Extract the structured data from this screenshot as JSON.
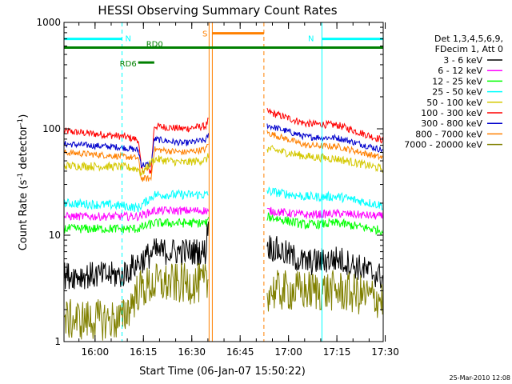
{
  "chart_data": {
    "type": "line",
    "title": "HESSI Observing Summary Count Rates",
    "xlabel": "Start Time (06-Jan-07 15:50:22)",
    "ylabel_main": "Count Rate (s",
    "ylabel_sup1": "-1",
    "ylabel_mid": " detector",
    "ylabel_sup2": "-1",
    "ylabel_end": ")",
    "yscale": "log",
    "ylim": [
      1,
      1000
    ],
    "xlim_minutes": [
      0,
      99
    ],
    "yticks": [
      {
        "value": 1,
        "label": "1"
      },
      {
        "value": 10,
        "label": "10"
      },
      {
        "value": 100,
        "label": "100"
      },
      {
        "value": 1000,
        "label": "1000"
      }
    ],
    "xticks": [
      {
        "minute": 9.6333,
        "label": "16:00"
      },
      {
        "minute": 24.6333,
        "label": "16:15"
      },
      {
        "minute": 39.6333,
        "label": "16:30"
      },
      {
        "minute": 54.6333,
        "label": "16:45"
      },
      {
        "minute": 69.6333,
        "label": "17:00"
      },
      {
        "minute": 84.6333,
        "label": "17:15"
      },
      {
        "minute": 99.6333,
        "label": "17:30"
      }
    ],
    "legend": {
      "position": "right",
      "header": [
        "Det 1,3,4,5,6,9,",
        "FDecim 1, Att 0"
      ],
      "entries": [
        {
          "label": "3 - 6 keV",
          "color": "#000000"
        },
        {
          "label": "6 - 12 keV",
          "color": "#ff00ff"
        },
        {
          "label": "12 - 25 keV",
          "color": "#00ff00"
        },
        {
          "label": "25 - 50 keV",
          "color": "#00ffff"
        },
        {
          "label": "50 - 100 keV",
          "color": "#d4c800"
        },
        {
          "label": "100 - 300 keV",
          "color": "#ff0000"
        },
        {
          "label": "300 - 800 keV",
          "color": "#0000cc"
        },
        {
          "label": "800 - 7000 keV",
          "color": "#ff8000"
        },
        {
          "label": "7000 - 20000 keV",
          "color": "#808000"
        }
      ]
    },
    "gaps": [
      [
        45,
        63
      ]
    ],
    "series": [
      {
        "name": "100 - 300 keV",
        "color": "#ff0000",
        "points": [
          [
            0,
            95
          ],
          [
            18,
            85
          ],
          [
            23,
            79
          ],
          [
            24,
            42
          ],
          [
            27,
            40
          ],
          [
            28,
            106
          ],
          [
            37,
            100
          ],
          [
            44,
            106
          ],
          [
            45,
            125
          ],
          [
            63,
            145
          ],
          [
            75,
            112
          ],
          [
            85,
            108
          ],
          [
            99,
            78
          ]
        ],
        "noise": 0.08,
        "dip": [
          24,
          28
        ]
      },
      {
        "name": "300 - 800 keV",
        "color": "#0000cc",
        "points": [
          [
            0,
            72
          ],
          [
            18,
            67
          ],
          [
            23,
            63
          ],
          [
            24,
            46
          ],
          [
            27,
            46
          ],
          [
            28,
            80
          ],
          [
            37,
            73
          ],
          [
            44,
            78
          ],
          [
            45,
            90
          ],
          [
            63,
            108
          ],
          [
            75,
            84
          ],
          [
            85,
            82
          ],
          [
            99,
            63
          ]
        ],
        "noise": 0.07,
        "dip": [
          24,
          28
        ]
      },
      {
        "name": "800 - 7000 keV",
        "color": "#ff8000",
        "points": [
          [
            0,
            60
          ],
          [
            18,
            55
          ],
          [
            23,
            53
          ],
          [
            24,
            34
          ],
          [
            27,
            34
          ],
          [
            28,
            64
          ],
          [
            37,
            60
          ],
          [
            44,
            64
          ],
          [
            45,
            78
          ],
          [
            63,
            92
          ],
          [
            75,
            70
          ],
          [
            85,
            68
          ],
          [
            99,
            53
          ]
        ],
        "noise": 0.07,
        "dip": [
          24,
          28
        ]
      },
      {
        "name": "50 - 100 keV",
        "color": "#d4c800",
        "points": [
          [
            0,
            45
          ],
          [
            18,
            44
          ],
          [
            23,
            42
          ],
          [
            24,
            38
          ],
          [
            28,
            52
          ],
          [
            37,
            48
          ],
          [
            44,
            51
          ],
          [
            45,
            56
          ],
          [
            63,
            65
          ],
          [
            75,
            55
          ],
          [
            85,
            52
          ],
          [
            99,
            42
          ]
        ],
        "noise": 0.09
      },
      {
        "name": "25 - 50 keV",
        "color": "#00ffff",
        "points": [
          [
            0,
            20
          ],
          [
            18,
            19
          ],
          [
            23,
            18
          ],
          [
            28,
            24
          ],
          [
            44,
            24
          ],
          [
            45,
            24
          ],
          [
            63,
            26
          ],
          [
            75,
            23
          ],
          [
            85,
            23
          ],
          [
            99,
            19
          ]
        ],
        "noise": 0.1
      },
      {
        "name": "6 - 12 keV",
        "color": "#ff00ff",
        "points": [
          [
            0,
            15
          ],
          [
            18,
            15
          ],
          [
            23,
            15
          ],
          [
            28,
            17
          ],
          [
            44,
            17
          ],
          [
            45,
            17
          ],
          [
            63,
            17
          ],
          [
            75,
            15.5
          ],
          [
            85,
            16
          ],
          [
            99,
            15
          ]
        ],
        "noise": 0.09
      },
      {
        "name": "12 - 25 keV",
        "color": "#00ff00",
        "points": [
          [
            0,
            11.5
          ],
          [
            18,
            11.5
          ],
          [
            23,
            11.5
          ],
          [
            28,
            13
          ],
          [
            44,
            13
          ],
          [
            45,
            13.5
          ],
          [
            63,
            15
          ],
          [
            75,
            12.5
          ],
          [
            85,
            13
          ],
          [
            99,
            11
          ]
        ],
        "noise": 0.1
      },
      {
        "name": "3 - 6 keV",
        "color": "#000000",
        "points": [
          [
            0,
            4.2
          ],
          [
            18,
            4.2
          ],
          [
            23,
            5.5
          ],
          [
            28,
            7
          ],
          [
            44,
            7
          ],
          [
            45,
            18
          ],
          [
            63,
            8
          ],
          [
            75,
            5.5
          ],
          [
            85,
            6
          ],
          [
            99,
            4
          ]
        ],
        "noise": 0.3
      },
      {
        "name": "7000 - 20000 keV",
        "color": "#808000",
        "points": [
          [
            0,
            1.6
          ],
          [
            18,
            1.6
          ],
          [
            23,
            3
          ],
          [
            28,
            3.5
          ],
          [
            44,
            3.5
          ],
          [
            63,
            3
          ],
          [
            75,
            3
          ],
          [
            85,
            3
          ],
          [
            99,
            2.5
          ]
        ],
        "noise": 0.45
      }
    ],
    "flags": [
      {
        "label": "N",
        "color": "#00ffff",
        "y": 700,
        "start": 0,
        "end": 18
      },
      {
        "label": "N",
        "color": "#00ffff",
        "y": 700,
        "start": 80,
        "end": 99
      },
      {
        "label": "S",
        "color": "#ff8000",
        "y": 790,
        "start": 46,
        "end": 62
      },
      {
        "label": "RD6",
        "color": "#008000",
        "y": 420,
        "start": 23,
        "end": 28
      },
      {
        "label": "RD0",
        "color": "#008000",
        "y": 580,
        "start": 0,
        "end": 99
      }
    ],
    "vlines": [
      {
        "minute": 0,
        "color": "#00ffff",
        "style": "solid"
      },
      {
        "minute": 18,
        "color": "#00ffff",
        "style": "dashed"
      },
      {
        "minute": 45,
        "color": "#ff8000",
        "style": "solid"
      },
      {
        "minute": 46,
        "color": "#ff8000",
        "style": "solid"
      },
      {
        "minute": 62,
        "color": "#ff8000",
        "style": "dashed"
      },
      {
        "minute": 80,
        "color": "#00ffff",
        "style": "solid"
      },
      {
        "minute": 99,
        "color": "#00ffff",
        "style": "dashed"
      }
    ],
    "timestamp": "25-Mar-2010 12:08"
  }
}
